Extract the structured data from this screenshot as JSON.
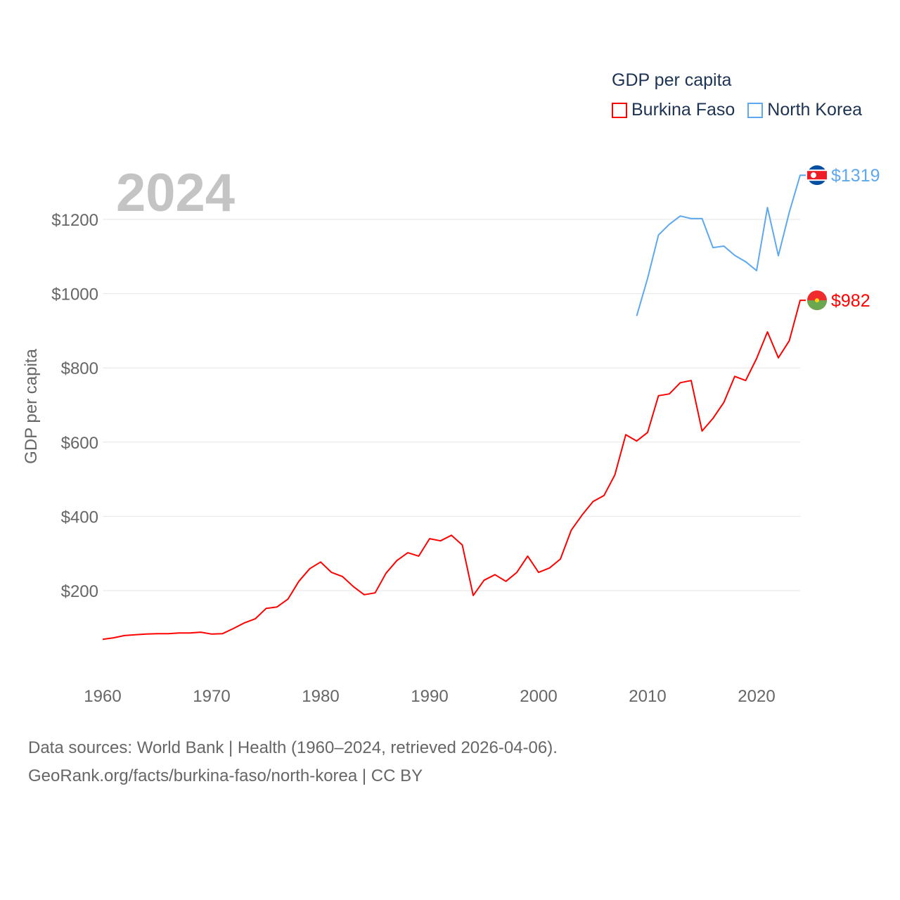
{
  "chart_data": {
    "type": "line",
    "title": "GDP per capita",
    "year_label": "2024",
    "ylabel": "GDP per capita",
    "xlabel": "",
    "xlim": [
      1960,
      2024
    ],
    "ylim": [
      0,
      1350
    ],
    "x_ticks": [
      1960,
      1970,
      1980,
      1990,
      2000,
      2010,
      2020
    ],
    "y_ticks": [
      200,
      400,
      600,
      800,
      1000,
      1200
    ],
    "y_tick_labels": [
      "$200",
      "$400",
      "$600",
      "$800",
      "$1000",
      "$1200"
    ],
    "grid": true,
    "legend_position": "top-right",
    "series": [
      {
        "name": "Burkina Faso",
        "color": "#ff0000",
        "end_label": "$982",
        "x_start": 1960,
        "values": [
          69,
          73,
          79,
          81,
          83,
          84,
          84,
          86,
          86,
          88,
          83,
          84,
          98,
          113,
          124,
          152,
          156,
          177,
          225,
          259,
          277,
          249,
          238,
          211,
          189,
          194,
          247,
          281,
          302,
          293,
          340,
          334,
          349,
          323,
          187,
          228,
          243,
          225,
          249,
          293,
          249,
          261,
          285,
          363,
          404,
          440,
          456,
          512,
          620,
          603,
          626,
          725,
          730,
          760,
          766,
          630,
          664,
          707,
          777,
          766,
          825,
          897,
          827,
          873,
          982
        ]
      },
      {
        "name": "North Korea",
        "color": "#5ea8ef",
        "end_label": "$1319",
        "x_start": 2009,
        "values": [
          940,
          1041,
          1158,
          1187,
          1209,
          1202,
          1202,
          1124,
          1128,
          1103,
          1086,
          1062,
          1232,
          1102,
          1219,
          1319
        ]
      }
    ]
  },
  "footer": {
    "line1": "Data sources: World Bank | Health (1960–2024, retrieved 2026-04-06).",
    "line2": "GeoRank.org/facts/burkina-faso/north-korea | CC BY"
  }
}
